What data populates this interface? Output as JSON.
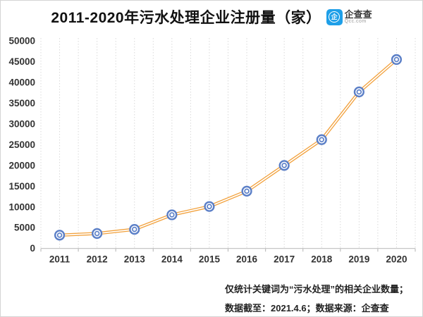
{
  "header": {
    "title": "2011-2020年污水处理企业注册量（家）",
    "logo": {
      "glyph": "企",
      "name": "企查查",
      "domain": "Qcc.com",
      "brand_color": "#1E9FE8"
    }
  },
  "chart_data": {
    "type": "line",
    "title": "2011-2020年污水处理企业注册量（家）",
    "categories": [
      "2011",
      "2012",
      "2013",
      "2014",
      "2015",
      "2016",
      "2017",
      "2018",
      "2019",
      "2020"
    ],
    "series": [
      {
        "name": "污水处理企业注册量",
        "values": [
          3200,
          3600,
          4600,
          8100,
          10100,
          13800,
          20000,
          26200,
          37700,
          45500
        ]
      }
    ],
    "xlabel": "",
    "ylabel": "",
    "ylim": [
      0,
      50000
    ],
    "ytick_step": 5000,
    "grid": "vertical-dotted-only",
    "legend": "none",
    "line_color": "#F2A13C",
    "line_core_color": "#FFFFFF",
    "marker_color": "#5B7FC7",
    "axis_color": "#BFBFBF",
    "gridline_color": "#D9D9D9",
    "tick_label_color": "#333333"
  },
  "footer": {
    "note_line1": "仅统计关键词为“污水处理”的相关企业数量；",
    "note_line2": "数据截至：2021.4.6；数据来源：企查查"
  }
}
